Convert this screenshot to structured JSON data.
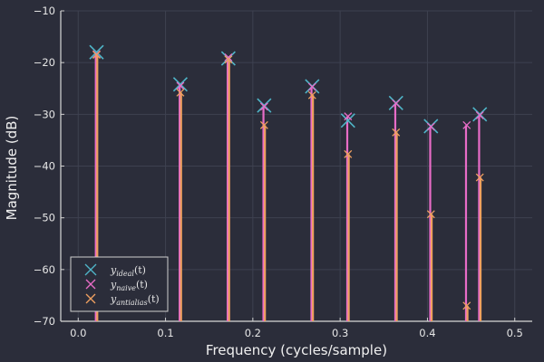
{
  "chart_data": {
    "type": "line",
    "title": "",
    "xlabel": "Frequency (cycles/sample)",
    "ylabel": "Magnitude (dB)",
    "xlim": [
      -0.02,
      0.52
    ],
    "ylim": [
      -70,
      -10
    ],
    "x_ticks": [
      0.0,
      0.1,
      0.2,
      0.3,
      0.4,
      0.5
    ],
    "x_tick_labels": [
      "0.0",
      "0.1",
      "0.2",
      "0.3",
      "0.4",
      "0.5"
    ],
    "y_ticks": [
      -70,
      -60,
      -50,
      -40,
      -30,
      -20,
      -10
    ],
    "y_tick_labels": [
      "−70",
      "−60",
      "−50",
      "−40",
      "−30",
      "−20",
      "−10"
    ],
    "grid": true,
    "legend_position": "bottom-left",
    "series": [
      {
        "name": "y_ideal(t)",
        "legend_base": "y",
        "legend_sub": "ideal",
        "legend_arg": "(t)",
        "color": "#4fb6c9",
        "marker": "x-large",
        "x": [
          0.021,
          0.117,
          0.172,
          0.213,
          0.268,
          0.309,
          0.364,
          0.404,
          0.46
        ],
        "y": [
          -18.0,
          -24.2,
          -19.2,
          -28.3,
          -24.6,
          -31.2,
          -27.8,
          -32.3,
          -30.0
        ]
      },
      {
        "name": "y_naive(t)",
        "legend_base": "y",
        "legend_sub": "naive",
        "legend_arg": "(t)",
        "color": "#e86cc7",
        "marker": "x",
        "x": [
          0.021,
          0.117,
          0.172,
          0.213,
          0.268,
          0.309,
          0.364,
          0.404,
          0.445,
          0.46
        ],
        "y": [
          -18.4,
          -24.5,
          -19.0,
          -28.5,
          -24.7,
          -30.4,
          -27.9,
          -32.4,
          -32.1,
          -30.2
        ]
      },
      {
        "name": "y_antialias(t)",
        "legend_base": "y",
        "legend_sub": "antialias",
        "legend_arg": "(t)",
        "color": "#f0a060",
        "marker": "x",
        "x": [
          0.021,
          0.117,
          0.172,
          0.213,
          0.268,
          0.309,
          0.364,
          0.404,
          0.445,
          0.46
        ],
        "y": [
          -18.5,
          -25.8,
          -19.4,
          -32.1,
          -26.3,
          -37.7,
          -33.5,
          -49.3,
          -67.0,
          -42.2
        ]
      }
    ]
  }
}
